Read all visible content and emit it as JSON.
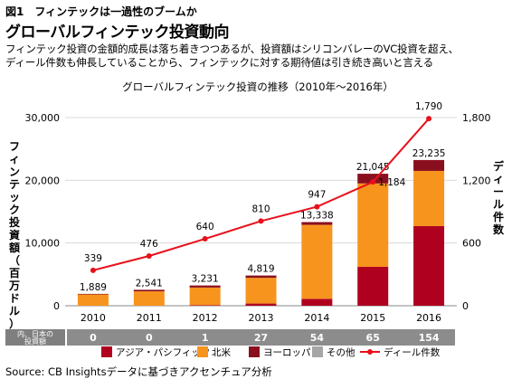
{
  "header": {
    "figure_label": "図1　フィンテックは一過性のブームか",
    "headline": "グローバルフィンテック投資動向",
    "description": [
      "フィンテック投資の金額的成長は落ち着きつつあるが、投資額はシリコンバレーのVC投資を超え、",
      "ディール件数も伸長していることから、フィンテックに対する期待値は引き続き高いと言える"
    ]
  },
  "chart_data": {
    "type": "bar",
    "title": "グローバルフィンテック投資の推移（2010年〜2016年）",
    "categories": [
      "2010",
      "2011",
      "2012",
      "2013",
      "2014",
      "2015",
      "2016"
    ],
    "stacked": true,
    "series": [
      {
        "name": "アジア・パシフィック",
        "color": "#b00020",
        "values": [
          0,
          0,
          100,
          350,
          1100,
          6200,
          12700
        ]
      },
      {
        "name": "北米",
        "color": "#f7941d",
        "values": [
          1800,
          2300,
          2800,
          4100,
          11800,
          13300,
          8800
        ]
      },
      {
        "name": "ヨーロッパ",
        "color": "#8a0f1e",
        "values": [
          89,
          241,
          331,
          369,
          438,
          1545,
          1735
        ]
      },
      {
        "name": "その他",
        "color": "#a6a6a6",
        "values": [
          0,
          0,
          0,
          0,
          0,
          0,
          0
        ]
      }
    ],
    "totals": [
      "1,889",
      "2,541",
      "3,231",
      "4,819",
      "13,338",
      "21,045",
      "23,235"
    ],
    "line": {
      "name": "ディール件数",
      "color": "#e8101c",
      "values": [
        339,
        476,
        640,
        810,
        947,
        1184,
        1790
      ],
      "labels": [
        "339",
        "476",
        "640",
        "810",
        "947",
        "1,184",
        "1,790"
      ]
    },
    "ylabel": "フィンテック投資額（百万ドル）",
    "y2label": "ディール件数",
    "ylim": [
      0,
      30000
    ],
    "y2lim": [
      0,
      1800
    ],
    "yticks": [
      "0",
      "10,000",
      "20,000",
      "30,000"
    ],
    "y2ticks": [
      "0",
      "600",
      "1,200",
      "1,800"
    ],
    "grid": true,
    "legend_position": "bottom",
    "japan_row": {
      "label_lines": [
        "内、日本の",
        "投資額"
      ],
      "values": [
        "0",
        "0",
        "1",
        "27",
        "54",
        "65",
        "154"
      ]
    }
  },
  "footer": {
    "source": "Source: CB Insightsデータに基づきアクセンチュア分析"
  }
}
